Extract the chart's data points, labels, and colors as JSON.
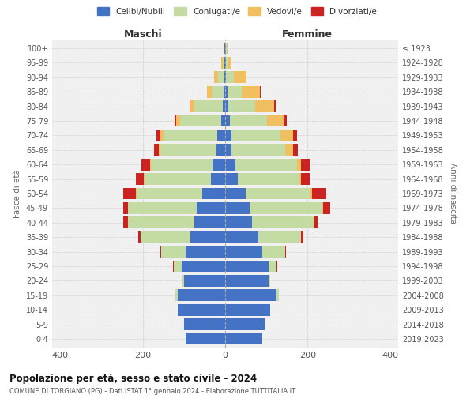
{
  "age_groups": [
    "0-4",
    "5-9",
    "10-14",
    "15-19",
    "20-24",
    "25-29",
    "30-34",
    "35-39",
    "40-44",
    "45-49",
    "50-54",
    "55-59",
    "60-64",
    "65-69",
    "70-74",
    "75-79",
    "80-84",
    "85-89",
    "90-94",
    "95-99",
    "100+"
  ],
  "birth_years": [
    "2019-2023",
    "2014-2018",
    "2009-2013",
    "2004-2008",
    "1999-2003",
    "1994-1998",
    "1989-1993",
    "1984-1988",
    "1979-1983",
    "1974-1978",
    "1969-1973",
    "1964-1968",
    "1959-1963",
    "1954-1958",
    "1949-1953",
    "1944-1948",
    "1939-1943",
    "1934-1938",
    "1929-1933",
    "1924-1928",
    "≤ 1923"
  ],
  "male": {
    "celibi": [
      95,
      100,
      115,
      115,
      100,
      105,
      95,
      85,
      75,
      70,
      55,
      35,
      30,
      22,
      20,
      10,
      5,
      3,
      2,
      1,
      1
    ],
    "coniugati": [
      0,
      0,
      0,
      5,
      5,
      20,
      60,
      120,
      160,
      165,
      160,
      160,
      150,
      135,
      130,
      100,
      70,
      30,
      15,
      4,
      2
    ],
    "vedovi": [
      0,
      0,
      0,
      0,
      0,
      0,
      0,
      0,
      1,
      1,
      2,
      2,
      3,
      5,
      8,
      8,
      10,
      12,
      10,
      4,
      1
    ],
    "divorziati": [
      0,
      0,
      0,
      0,
      0,
      2,
      3,
      5,
      12,
      12,
      30,
      20,
      20,
      10,
      8,
      5,
      2,
      0,
      0,
      0,
      0
    ]
  },
  "female": {
    "nubili": [
      90,
      95,
      110,
      125,
      105,
      105,
      90,
      80,
      65,
      60,
      50,
      30,
      25,
      15,
      15,
      12,
      8,
      5,
      2,
      1,
      1
    ],
    "coniugate": [
      0,
      0,
      0,
      5,
      5,
      20,
      55,
      105,
      150,
      175,
      155,
      150,
      150,
      130,
      120,
      90,
      65,
      35,
      20,
      5,
      2
    ],
    "vedove": [
      0,
      0,
      0,
      0,
      0,
      0,
      0,
      0,
      1,
      2,
      5,
      5,
      10,
      20,
      30,
      40,
      45,
      45,
      30,
      8,
      2
    ],
    "divorziate": [
      0,
      0,
      0,
      0,
      0,
      1,
      3,
      5,
      8,
      18,
      35,
      20,
      20,
      12,
      10,
      8,
      5,
      2,
      0,
      0,
      0
    ]
  },
  "colors": {
    "celibi": "#4472c4",
    "coniugati": "#c5dba4",
    "vedovi": "#f0c060",
    "divorziati": "#cc2222"
  },
  "title": "Popolazione per età, sesso e stato civile - 2024",
  "subtitle": "COMUNE DI TORGIANO (PG) - Dati ISTAT 1° gennaio 2024 - Elaborazione TUTTITALIA.IT",
  "xlabel_left": "Maschi",
  "xlabel_right": "Femmine",
  "ylabel_left": "Fasce di età",
  "ylabel_right": "Anni di nascita",
  "legend_labels": [
    "Celibi/Nubili",
    "Coniugati/e",
    "Vedovi/e",
    "Divorziati/e"
  ],
  "xlim": 420,
  "bg_color": "#ffffff",
  "plot_bg_color": "#f0f0f0",
  "grid_color": "#cccccc"
}
